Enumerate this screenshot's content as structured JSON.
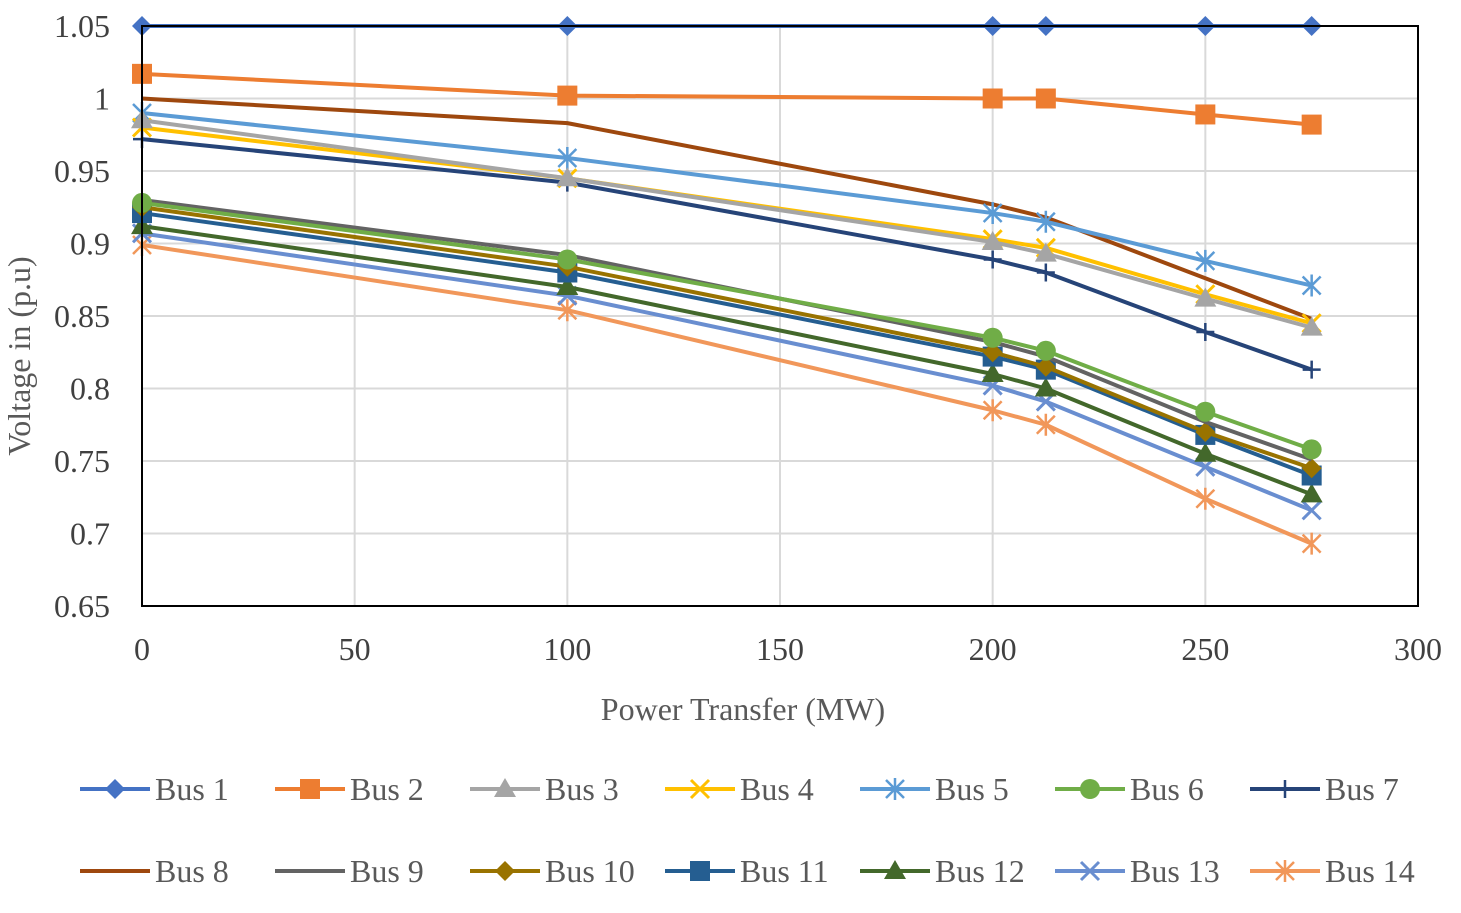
{
  "chart_data": {
    "type": "line",
    "title": "",
    "xlabel": "Power Transfer (MW)",
    "ylabel": "Voltage in (p.u)",
    "xlim": [
      0,
      300
    ],
    "ylim": [
      0.65,
      1.05
    ],
    "xticks": [
      "0",
      "50",
      "100",
      "150",
      "200",
      "250",
      "300"
    ],
    "yticks": [
      "0.65",
      "0.7",
      "0.75",
      "0.8",
      "0.85",
      "0.9",
      "0.95",
      "1",
      "1.05"
    ],
    "grid": true,
    "legend_position": "bottom",
    "x": [
      0,
      100,
      200,
      212.5,
      250,
      275
    ],
    "series": [
      {
        "name": "Bus 1",
        "color": "#4472C4",
        "marker": "diamond",
        "values": [
          1.05,
          1.05,
          1.05,
          1.05,
          1.05,
          1.05
        ]
      },
      {
        "name": "Bus 2",
        "color": "#ED7D31",
        "marker": "square",
        "values": [
          1.017,
          1.002,
          1.0,
          1.0,
          0.989,
          0.982
        ]
      },
      {
        "name": "Bus 3",
        "color": "#A5A5A5",
        "marker": "triangle",
        "values": [
          0.985,
          0.945,
          0.901,
          0.893,
          0.862,
          0.842
        ]
      },
      {
        "name": "Bus 4",
        "color": "#FFC000",
        "marker": "x",
        "values": [
          0.98,
          0.945,
          0.903,
          0.897,
          0.865,
          0.845
        ]
      },
      {
        "name": "Bus 5",
        "color": "#5B9BD5",
        "marker": "star",
        "values": [
          0.99,
          0.959,
          0.921,
          0.915,
          0.888,
          0.871
        ]
      },
      {
        "name": "Bus 6",
        "color": "#70AD47",
        "marker": "circle",
        "values": [
          0.928,
          0.889,
          0.835,
          0.826,
          0.784,
          0.758
        ]
      },
      {
        "name": "Bus 7",
        "color": "#264478",
        "marker": "plus",
        "values": [
          0.972,
          0.942,
          0.889,
          0.88,
          0.839,
          0.813
        ]
      },
      {
        "name": "Bus 8",
        "color": "#9E480E",
        "marker": "none",
        "values": [
          1.0,
          0.983,
          0.927,
          0.918,
          0.876,
          0.848
        ]
      },
      {
        "name": "Bus 9",
        "color": "#636363",
        "marker": "none",
        "values": [
          0.93,
          0.892,
          0.832,
          0.822,
          0.777,
          0.751
        ]
      },
      {
        "name": "Bus 10",
        "color": "#997300",
        "marker": "diamond",
        "values": [
          0.925,
          0.884,
          0.825,
          0.815,
          0.77,
          0.745
        ]
      },
      {
        "name": "Bus 11",
        "color": "#255E91",
        "marker": "square",
        "values": [
          0.921,
          0.88,
          0.822,
          0.813,
          0.768,
          0.74
        ]
      },
      {
        "name": "Bus 12",
        "color": "#43682B",
        "marker": "triangle",
        "values": [
          0.912,
          0.87,
          0.81,
          0.8,
          0.755,
          0.727
        ]
      },
      {
        "name": "Bus 13",
        "color": "#698ED0",
        "marker": "x",
        "values": [
          0.907,
          0.864,
          0.802,
          0.791,
          0.746,
          0.716
        ]
      },
      {
        "name": "Bus 14",
        "color": "#F1975A",
        "marker": "star",
        "values": [
          0.899,
          0.854,
          0.785,
          0.775,
          0.724,
          0.693
        ]
      }
    ]
  }
}
